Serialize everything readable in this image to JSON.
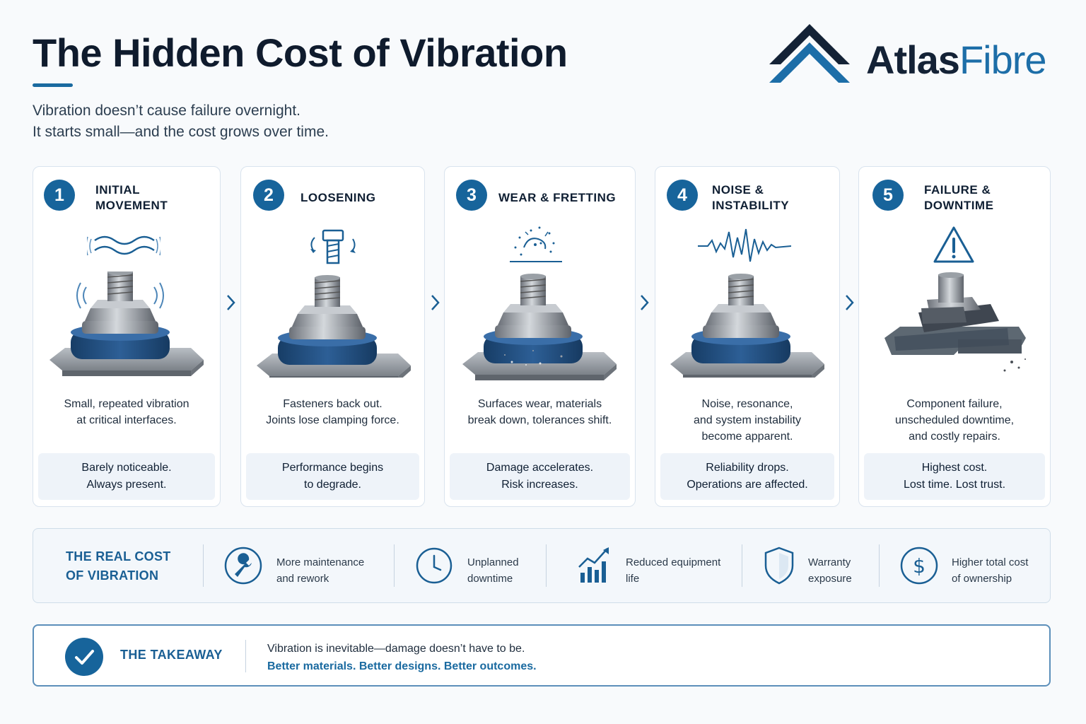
{
  "header": {
    "title": "The Hidden Cost of Vibration",
    "subtitle_lines": [
      "Vibration doesn’t cause failure overnight.",
      "It starts small—and the cost grows over time."
    ]
  },
  "logo": {
    "atlas": "Atlas",
    "fibre": "Fibre"
  },
  "steps": [
    {
      "num": "1",
      "title_lines": [
        "INITIAL",
        "MOVEMENT"
      ],
      "desc_lines": [
        "Small, repeated vibration",
        "at critical interfaces."
      ],
      "box_lines": [
        "Barely noticeable.",
        "Always present."
      ]
    },
    {
      "num": "2",
      "title_lines": [
        "LOOSENING"
      ],
      "desc_lines": [
        "Fasteners back out.",
        "Joints lose clamping force."
      ],
      "box_lines": [
        "Performance begins",
        "to degrade."
      ]
    },
    {
      "num": "3",
      "title_lines": [
        "WEAR & FRETTING"
      ],
      "desc_lines": [
        "Surfaces wear, materials",
        "break down, tolerances shift."
      ],
      "box_lines": [
        "Damage accelerates.",
        "Risk increases."
      ]
    },
    {
      "num": "4",
      "title_lines": [
        "NOISE &",
        "INSTABILITY"
      ],
      "desc_lines": [
        "Noise, resonance,",
        "and system instability",
        "become apparent."
      ],
      "box_lines": [
        "Reliability drops.",
        "Operations are affected."
      ]
    },
    {
      "num": "5",
      "title_lines": [
        "FAILURE &",
        "DOWNTIME"
      ],
      "desc_lines": [
        "Component failure,",
        "unscheduled downtime,",
        "and costly repairs."
      ],
      "box_lines": [
        "Highest cost.",
        "Lost time. Lost trust."
      ]
    }
  ],
  "real_cost": {
    "title_lines": [
      "THE REAL COST",
      "OF VIBRATION"
    ],
    "items": [
      {
        "icon": "wrench-icon",
        "label_lines": [
          "More maintenance",
          "and rework"
        ]
      },
      {
        "icon": "clock-icon",
        "label_lines": [
          "Unplanned",
          "downtime"
        ]
      },
      {
        "icon": "chart-icon",
        "label_lines": [
          "Reduced equipment",
          "life"
        ]
      },
      {
        "icon": "shield-icon",
        "label_lines": [
          "Warranty",
          "exposure"
        ]
      },
      {
        "icon": "dollar-icon",
        "label_lines": [
          "Higher total cost",
          "of ownership"
        ]
      }
    ]
  },
  "takeaway": {
    "title": "THE TAKEAWAY",
    "line1": "Vibration is inevitable—damage doesn’t have to be.",
    "line2": "Better materials. Better designs. Better outcomes."
  },
  "colors": {
    "accent": "#17649b",
    "dark": "#0f1b2d",
    "blue_washer": "#1f4f82"
  }
}
